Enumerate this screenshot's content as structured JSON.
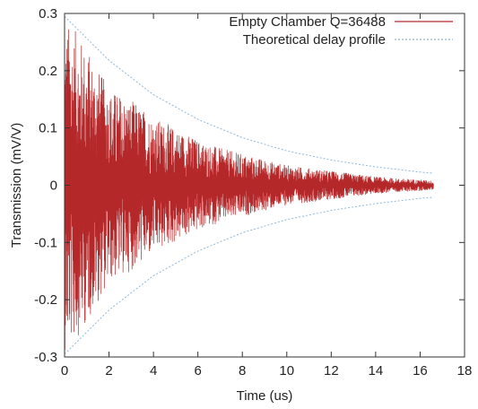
{
  "chart_data": {
    "type": "line",
    "title": "",
    "xlabel": "Time (us)",
    "ylabel": "Transmission (mV/V)",
    "xlim": [
      0,
      18
    ],
    "ylim": [
      -0.3,
      0.3
    ],
    "x_ticks": [
      "0",
      "2",
      "4",
      "6",
      "8",
      "10",
      "12",
      "14",
      "16",
      "18"
    ],
    "y_ticks": [
      "0.3",
      "0.2",
      "0.1",
      "0",
      "-0.1",
      "-0.2",
      "-0.3"
    ],
    "grid": false,
    "legend_position": "top-right",
    "series": [
      {
        "name": "Empty Chamber Q=36488",
        "color": "#b5282a",
        "kind": "oscillating signal",
        "x_range": [
          0,
          16.6
        ],
        "envelope": {
          "x": [
            0,
            0.5,
            1,
            2,
            3,
            4,
            5,
            6,
            7,
            8,
            9,
            10,
            11,
            12,
            13,
            14,
            15,
            16,
            16.6
          ],
          "y": [
            0.29,
            0.27,
            0.24,
            0.17,
            0.15,
            0.12,
            0.1,
            0.08,
            0.065,
            0.055,
            0.045,
            0.035,
            0.03,
            0.025,
            0.02,
            0.015,
            0.012,
            0.01,
            0.008
          ]
        }
      },
      {
        "name": "Theoretical delay profile",
        "color": "#8fb8d8",
        "kind": "exponential envelope",
        "x": [
          0,
          2,
          4,
          6,
          8,
          10,
          12,
          14,
          16,
          16.6
        ],
        "y": [
          0.295,
          0.218,
          0.158,
          0.115,
          0.083,
          0.06,
          0.044,
          0.032,
          0.023,
          0.021
        ]
      }
    ]
  }
}
